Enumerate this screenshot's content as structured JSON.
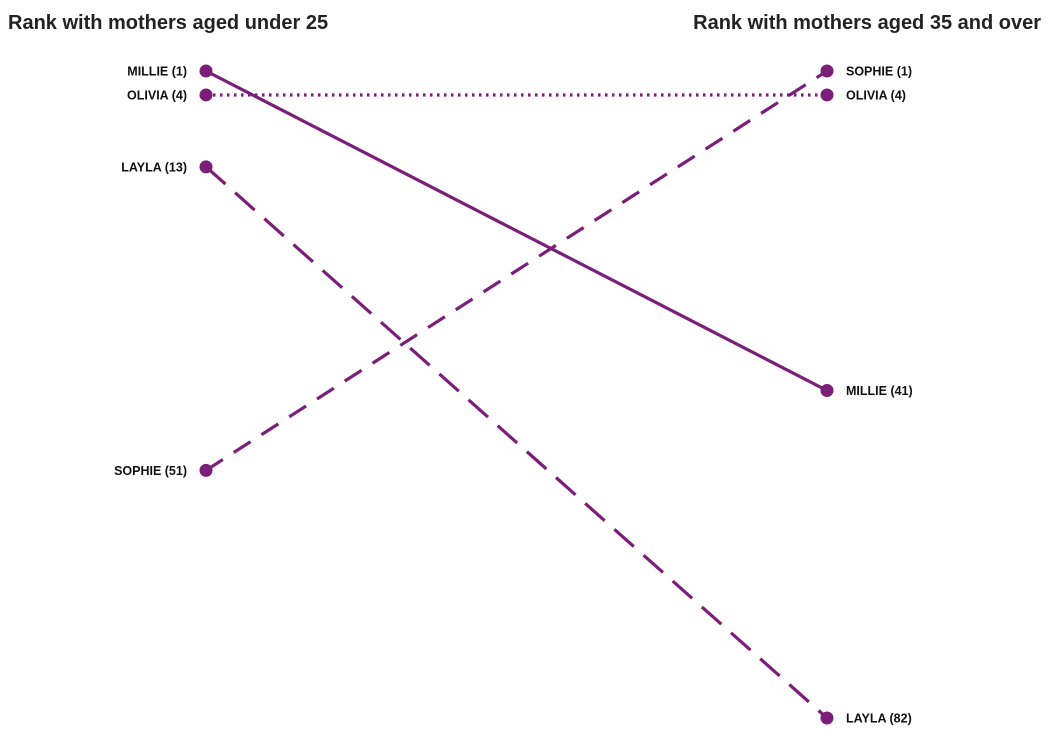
{
  "chart_data": {
    "type": "slope",
    "left_title": "Rank with mothers aged under 25",
    "right_title": "Rank with mothers aged 35 and over",
    "color": "#7a1e7a",
    "rank_axis": {
      "min": 1,
      "max": 82,
      "direction": "down"
    },
    "series": [
      {
        "name": "MILLIE",
        "left_rank": 1,
        "right_rank": 41,
        "line_style": "solid",
        "left_label": "MILLIE (1)",
        "right_label": "MILLIE (41)"
      },
      {
        "name": "OLIVIA",
        "left_rank": 4,
        "right_rank": 4,
        "line_style": "dotted",
        "left_label": "OLIVIA (4)",
        "right_label": "OLIVIA (4)"
      },
      {
        "name": "LAYLA",
        "left_rank": 13,
        "right_rank": 82,
        "line_style": "dashed-long",
        "left_label": "LAYLA (13)",
        "right_label": "LAYLA (82)"
      },
      {
        "name": "SOPHIE",
        "left_rank": 51,
        "right_rank": 1,
        "line_style": "dashed",
        "left_label": "SOPHIE (51)",
        "right_label": "SOPHIE (1)"
      }
    ]
  }
}
